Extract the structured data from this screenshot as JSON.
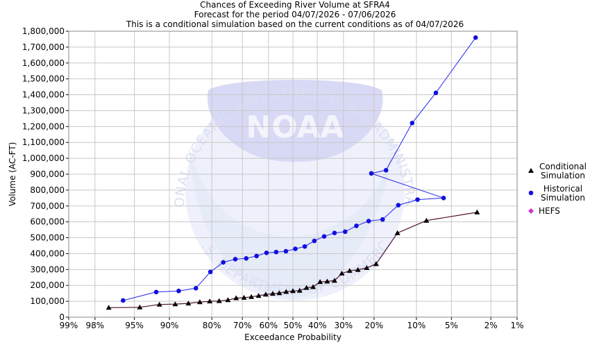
{
  "chart_data": {
    "type": "line",
    "title_lines": [
      "Chances of Exceeding River Volume at SFRA4",
      "Forecast for the period 04/07/2026 - 07/06/2026",
      "This is a conditional simulation based on the current conditions as of 04/07/2026"
    ],
    "xlabel": "Exceedance Probability",
    "ylabel": "Volume (AC-FT)",
    "x_scale": "normal-probability",
    "x_ticks": [
      {
        "p": 0.99,
        "label": "99%"
      },
      {
        "p": 0.98,
        "label": "98%"
      },
      {
        "p": 0.95,
        "label": "95%"
      },
      {
        "p": 0.9,
        "label": "90%"
      },
      {
        "p": 0.8,
        "label": "80%"
      },
      {
        "p": 0.7,
        "label": "70%"
      },
      {
        "p": 0.6,
        "label": "60%"
      },
      {
        "p": 0.5,
        "label": "50%"
      },
      {
        "p": 0.4,
        "label": "40%"
      },
      {
        "p": 0.3,
        "label": "30%"
      },
      {
        "p": 0.2,
        "label": "20%"
      },
      {
        "p": 0.1,
        "label": "10%"
      },
      {
        "p": 0.05,
        "label": "5%"
      },
      {
        "p": 0.02,
        "label": "2%"
      },
      {
        "p": 0.01,
        "label": "1%"
      }
    ],
    "ylim": [
      0,
      1800000
    ],
    "y_ticks": [
      {
        "v": 0,
        "label": "0"
      },
      {
        "v": 100000,
        "label": "100,000"
      },
      {
        "v": 200000,
        "label": "200,000"
      },
      {
        "v": 300000,
        "label": "300,000"
      },
      {
        "v": 400000,
        "label": "400,000"
      },
      {
        "v": 500000,
        "label": "500,000"
      },
      {
        "v": 600000,
        "label": "600,000"
      },
      {
        "v": 700000,
        "label": "700,000"
      },
      {
        "v": 800000,
        "label": "800,000"
      },
      {
        "v": 900000,
        "label": "900,000"
      },
      {
        "v": 1000000,
        "label": "1,000,000"
      },
      {
        "v": 1100000,
        "label": "1,100,000"
      },
      {
        "v": 1200000,
        "label": "1,200,000"
      },
      {
        "v": 1300000,
        "label": "1,300,000"
      },
      {
        "v": 1400000,
        "label": "1,400,000"
      },
      {
        "v": 1500000,
        "label": "1,500,000"
      },
      {
        "v": 1600000,
        "label": "1,600,000"
      },
      {
        "v": 1700000,
        "label": "1,700,000"
      },
      {
        "v": 1800000,
        "label": "1,800,000"
      }
    ],
    "grid": true,
    "legend_position": "right",
    "series": [
      {
        "name": "Conditional Simulation",
        "legend_lines": [
          "Conditional",
          "Simulation"
        ],
        "color": "#4b0e2e",
        "marker": "triangle",
        "marker_color": "#000000",
        "points": [
          {
            "p": 0.972,
            "v": 60000
          },
          {
            "p": 0.944,
            "v": 62000
          },
          {
            "p": 0.917,
            "v": 80000
          },
          {
            "p": 0.889,
            "v": 82000
          },
          {
            "p": 0.861,
            "v": 87000
          },
          {
            "p": 0.833,
            "v": 95000
          },
          {
            "p": 0.806,
            "v": 100000
          },
          {
            "p": 0.778,
            "v": 102000
          },
          {
            "p": 0.75,
            "v": 108000
          },
          {
            "p": 0.722,
            "v": 120000
          },
          {
            "p": 0.694,
            "v": 123000
          },
          {
            "p": 0.667,
            "v": 128000
          },
          {
            "p": 0.639,
            "v": 135000
          },
          {
            "p": 0.611,
            "v": 143000
          },
          {
            "p": 0.583,
            "v": 148000
          },
          {
            "p": 0.556,
            "v": 152000
          },
          {
            "p": 0.528,
            "v": 160000
          },
          {
            "p": 0.5,
            "v": 165000
          },
          {
            "p": 0.472,
            "v": 167000
          },
          {
            "p": 0.444,
            "v": 185000
          },
          {
            "p": 0.417,
            "v": 190000
          },
          {
            "p": 0.389,
            "v": 222000
          },
          {
            "p": 0.361,
            "v": 225000
          },
          {
            "p": 0.333,
            "v": 230000
          },
          {
            "p": 0.306,
            "v": 275000
          },
          {
            "p": 0.278,
            "v": 292000
          },
          {
            "p": 0.25,
            "v": 298000
          },
          {
            "p": 0.222,
            "v": 310000
          },
          {
            "p": 0.194,
            "v": 335000
          },
          {
            "p": 0.139,
            "v": 530000
          },
          {
            "p": 0.083,
            "v": 608000
          },
          {
            "p": 0.028,
            "v": 660000
          }
        ]
      },
      {
        "name": "Historical Simulation",
        "legend_lines": [
          "Historical",
          "Simulation"
        ],
        "color": "#2222ee",
        "marker": "circle",
        "marker_color": "#1010dd",
        "points": [
          {
            "p": 0.961,
            "v": 105000
          },
          {
            "p": 0.922,
            "v": 158000
          },
          {
            "p": 0.882,
            "v": 165000
          },
          {
            "p": 0.843,
            "v": 182000
          },
          {
            "p": 0.804,
            "v": 285000
          },
          {
            "p": 0.765,
            "v": 345000
          },
          {
            "p": 0.725,
            "v": 365000
          },
          {
            "p": 0.686,
            "v": 370000
          },
          {
            "p": 0.647,
            "v": 385000
          },
          {
            "p": 0.608,
            "v": 405000
          },
          {
            "p": 0.569,
            "v": 410000
          },
          {
            "p": 0.529,
            "v": 415000
          },
          {
            "p": 0.49,
            "v": 430000
          },
          {
            "p": 0.451,
            "v": 445000
          },
          {
            "p": 0.412,
            "v": 480000
          },
          {
            "p": 0.373,
            "v": 508000
          },
          {
            "p": 0.333,
            "v": 530000
          },
          {
            "p": 0.294,
            "v": 538000
          },
          {
            "p": 0.255,
            "v": 575000
          },
          {
            "p": 0.216,
            "v": 605000
          },
          {
            "p": 0.176,
            "v": 615000
          },
          {
            "p": 0.137,
            "v": 705000
          },
          {
            "p": 0.098,
            "v": 740000
          },
          {
            "p": 0.059,
            "v": 750000
          },
          {
            "p": 0.208,
            "v": 905000
          },
          {
            "p": 0.167,
            "v": 925000
          },
          {
            "p": 0.108,
            "v": 1222000
          },
          {
            "p": 0.069,
            "v": 1412000
          },
          {
            "p": 0.029,
            "v": 1760000
          }
        ]
      },
      {
        "name": "HEFS",
        "legend_lines": [
          "HEFS"
        ],
        "color": "#cc33cc",
        "marker": "diamond",
        "marker_color": "#cc33cc",
        "points": []
      }
    ]
  },
  "watermark": {
    "logo_text": "NOAA",
    "ring_top": "NATIONAL OCEANIC AND ATMOSPHERIC ADMINISTRATION",
    "ring_bottom": "U.S. DEPARTMENT OF COMMERCE"
  }
}
